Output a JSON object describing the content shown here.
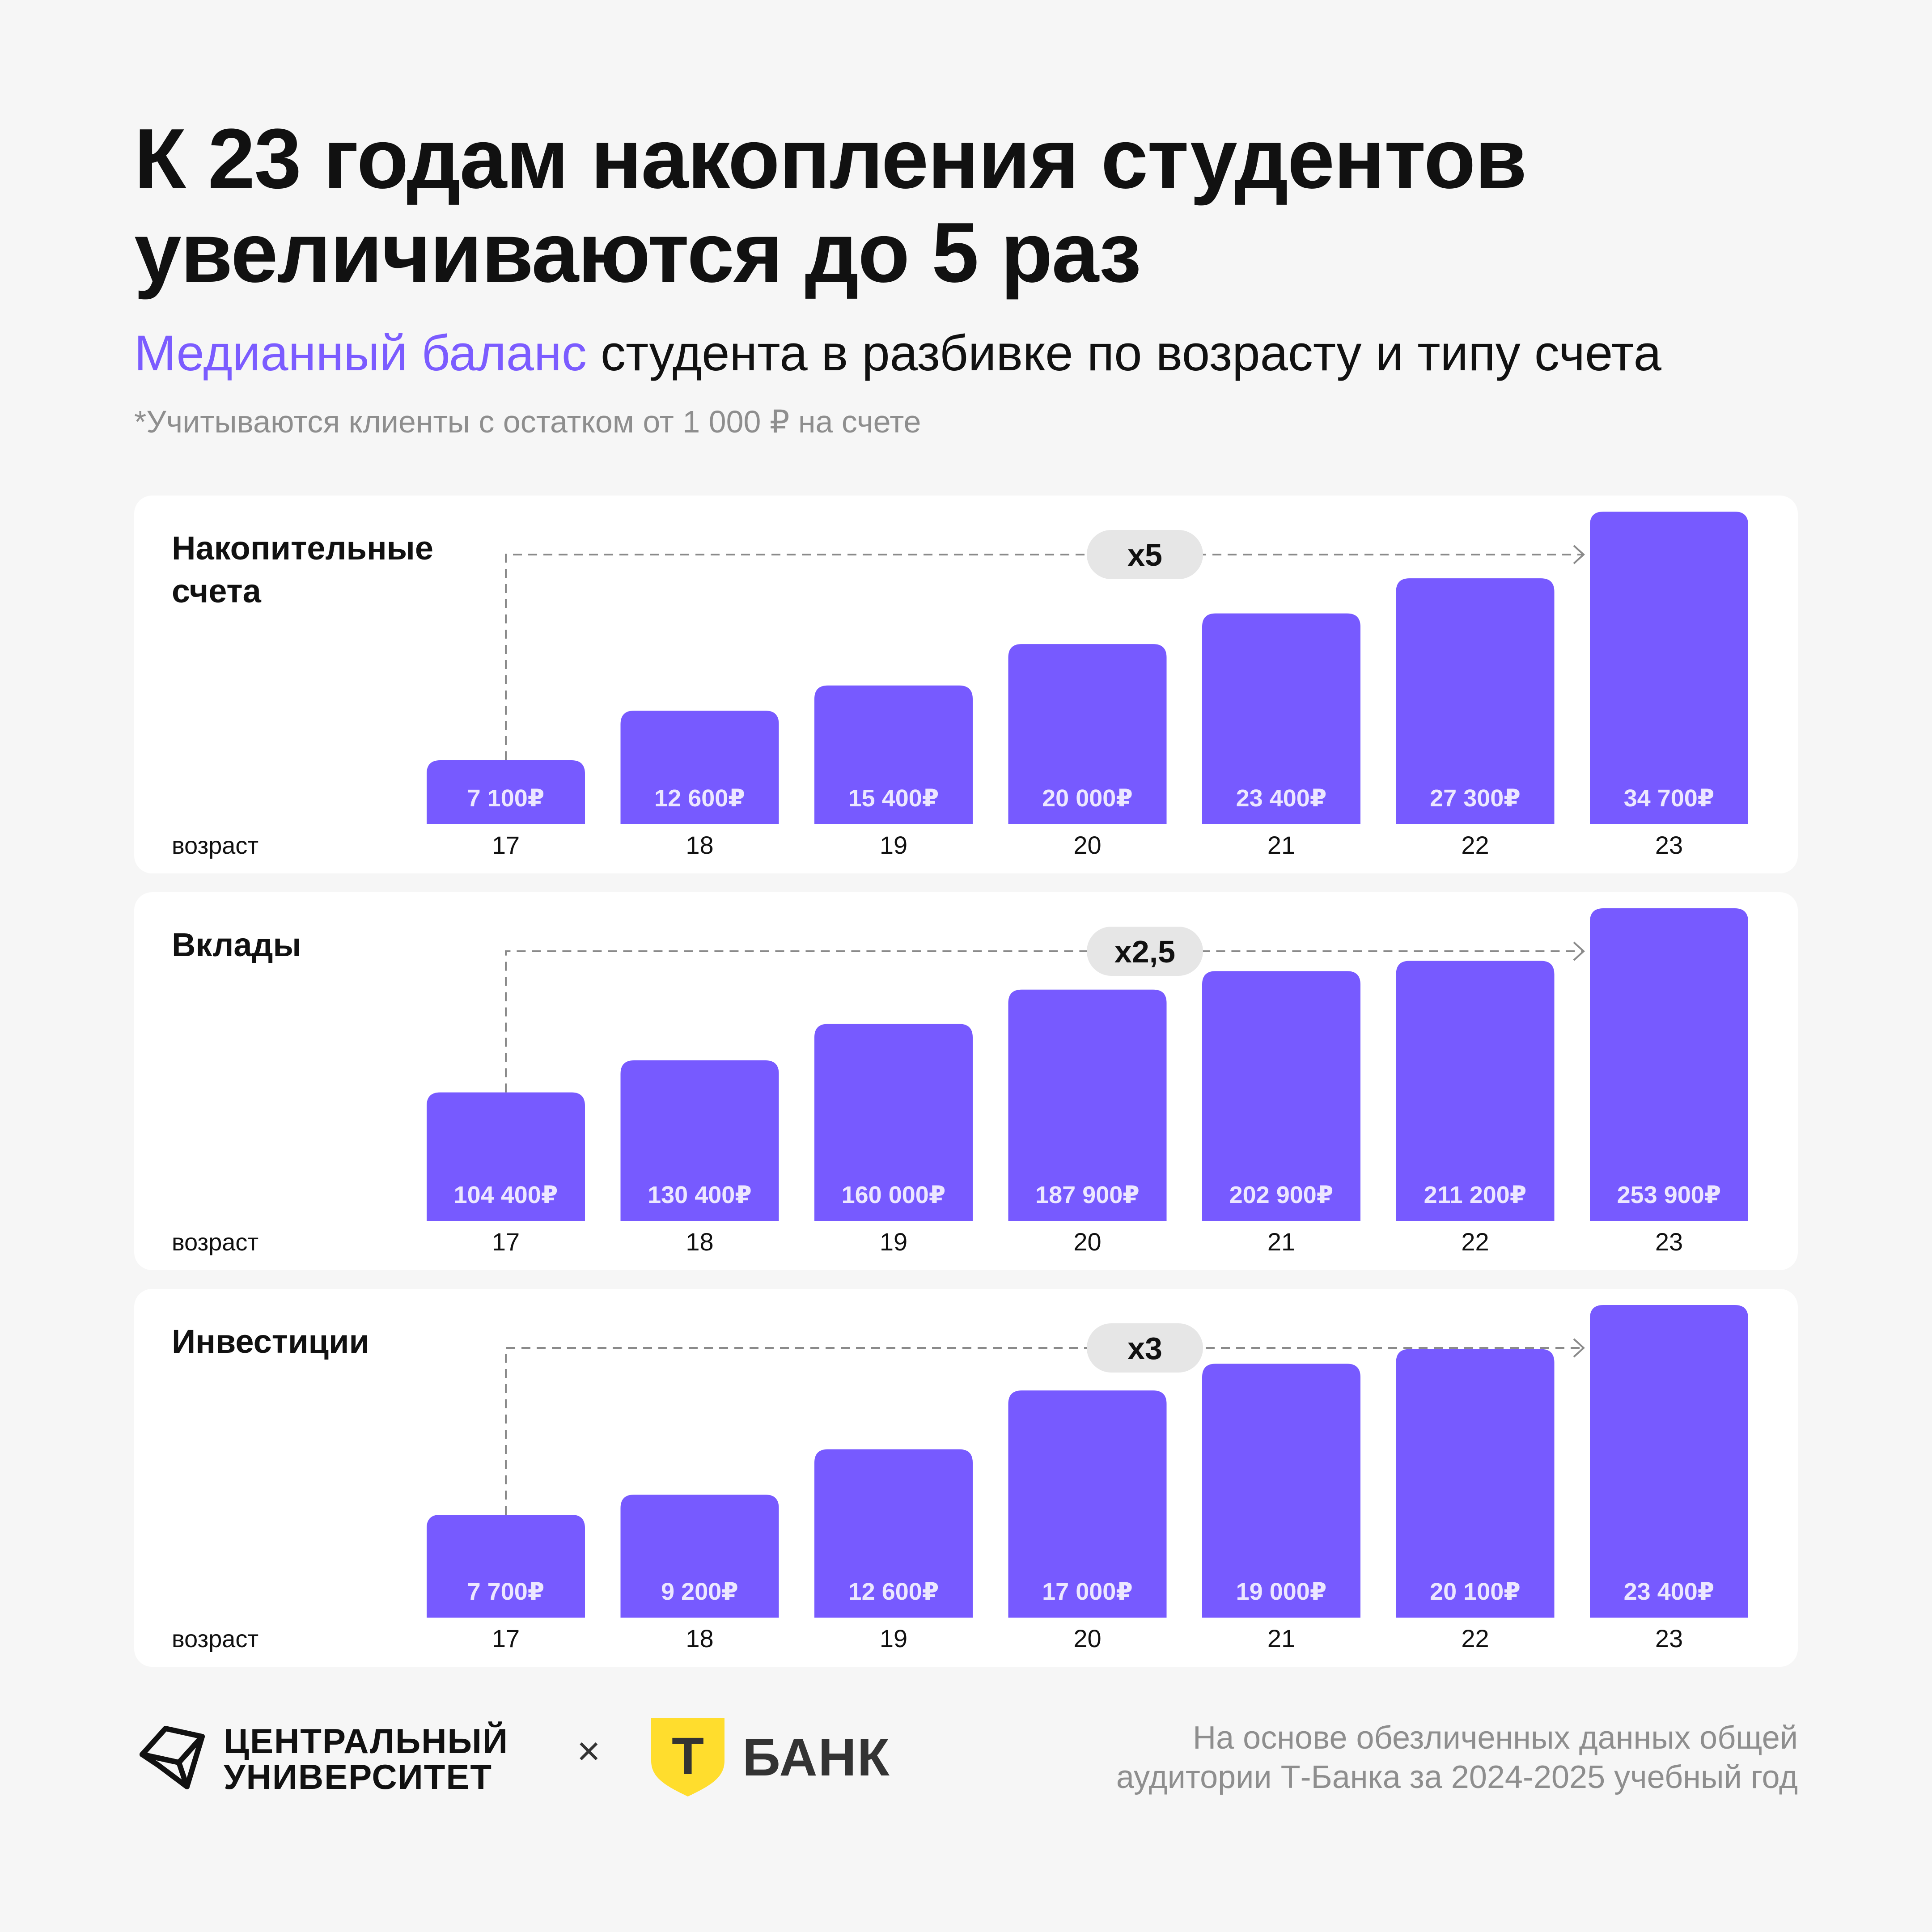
{
  "header": {
    "title": "К 23 годам накопления студентов увеличиваются до 5 раз",
    "subtitle_accent": "Медианный баланс",
    "subtitle_rest": " студента в разбивке по возрасту и типу счета",
    "note": "*Учитываются клиенты с остатком от 1 000 ₽ на счете"
  },
  "colors": {
    "accent": "#7b5cff",
    "bar": "#775aff",
    "badge": "#e6e6e6"
  },
  "chart_data": [
    {
      "type": "bar",
      "title": "Накопительные счета",
      "xlabel": "возраст",
      "categories": [
        "17",
        "18",
        "19",
        "20",
        "21",
        "22",
        "23"
      ],
      "values": [
        7100,
        12600,
        15400,
        20000,
        23400,
        27300,
        34700
      ],
      "value_labels": [
        "7 100₽",
        "12 600₽",
        "15 400₽",
        "20 000₽",
        "23 400₽",
        "27 300₽",
        "34 700₽"
      ],
      "multiplier": "x5"
    },
    {
      "type": "bar",
      "title": "Вклады",
      "xlabel": "возраст",
      "categories": [
        "17",
        "18",
        "19",
        "20",
        "21",
        "22",
        "23"
      ],
      "values": [
        104400,
        130400,
        160000,
        187900,
        202900,
        211200,
        253900
      ],
      "value_labels": [
        "104 400₽",
        "130 400₽",
        "160 000₽",
        "187 900₽",
        "202 900₽",
        "211 200₽",
        "253 900₽"
      ],
      "multiplier": "x2,5"
    },
    {
      "type": "bar",
      "title": "Инвестиции",
      "xlabel": "возраст",
      "categories": [
        "17",
        "18",
        "19",
        "20",
        "21",
        "22",
        "23"
      ],
      "values": [
        7700,
        9200,
        12600,
        17000,
        19000,
        20100,
        23400
      ],
      "value_labels": [
        "7 700₽",
        "9 200₽",
        "12 600₽",
        "17 000₽",
        "19 000₽",
        "20 100₽",
        "23 400₽"
      ],
      "multiplier": "x3"
    }
  ],
  "footer": {
    "university_line1": "ЦЕНТРАЛЬНЫЙ",
    "university_line2": "УНИВЕРСИТЕТ",
    "cross": "×",
    "bank_letter": "Т",
    "bank_name": "БАНК",
    "source_line1": "На основе обезличенных данных общей",
    "source_line2": "аудитории Т-Банка за 2024-2025 учебный год"
  }
}
